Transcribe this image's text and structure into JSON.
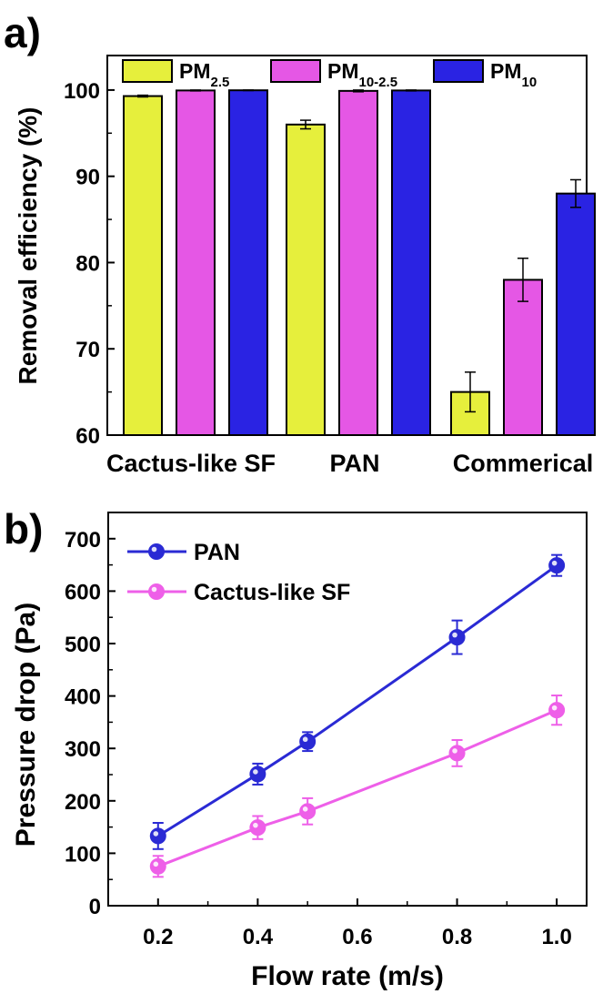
{
  "colors": {
    "yellow": "#e6ef3c",
    "magenta": "#e557e5",
    "blue": "#2a23e3",
    "pan_line": "#2a2ad4",
    "cactus_line": "#ee5fe8",
    "axis": "#000000"
  },
  "chart_data": [
    {
      "type": "bar",
      "panel_label": "a)",
      "ylabel": "Removal efficiency (%)",
      "ylim": [
        60,
        104
      ],
      "yticks": [
        60,
        70,
        80,
        90,
        100
      ],
      "categories": [
        "Cactus-like SF",
        "PAN",
        "Commerical"
      ],
      "legend": [
        {
          "base": "PM",
          "sub": "2.5"
        },
        {
          "base": "PM",
          "sub": "10-2.5"
        },
        {
          "base": "PM",
          "sub": "10"
        }
      ],
      "series": [
        {
          "name": "PM2.5",
          "values": [
            99.3,
            96.0,
            65.0
          ],
          "errors": [
            0.1,
            0.5,
            2.3
          ]
        },
        {
          "name": "PM10-2.5",
          "values": [
            99.95,
            99.9,
            78.0
          ],
          "errors": [
            0.05,
            0.1,
            2.5
          ]
        },
        {
          "name": "PM10",
          "values": [
            99.97,
            99.95,
            88.0
          ],
          "errors": [
            0.03,
            0.05,
            1.6
          ]
        }
      ]
    },
    {
      "type": "line",
      "panel_label": "b)",
      "xlabel": "Flow rate (m/s)",
      "ylabel": "Pressure drop (Pa)",
      "xlim": [
        0.1,
        1.06
      ],
      "ylim": [
        0,
        750
      ],
      "xticks": [
        "0.2",
        "0.4",
        "0.6",
        "0.8",
        "1.0"
      ],
      "yticks": [
        "0",
        "100",
        "200",
        "300",
        "400",
        "500",
        "600",
        "700"
      ],
      "x": [
        0.2,
        0.4,
        0.5,
        0.8,
        1.0
      ],
      "series": [
        {
          "name": "PAN",
          "values": [
            133,
            251,
            313,
            512,
            649
          ],
          "errors": [
            25,
            20,
            18,
            32,
            20
          ]
        },
        {
          "name": "Cactus-like SF",
          "values": [
            75,
            149,
            180,
            291,
            373
          ],
          "errors": [
            20,
            22,
            25,
            25,
            28
          ]
        }
      ]
    }
  ]
}
